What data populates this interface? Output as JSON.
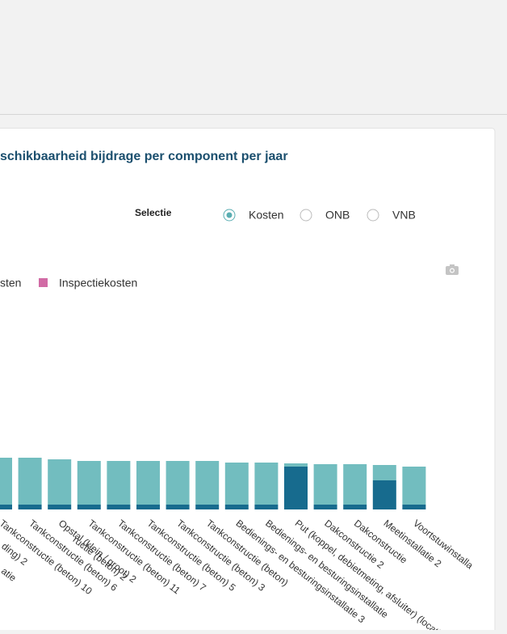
{
  "panel": {
    "title": "schikbaarheid bijdrage per component per jaar",
    "selection_label": "Selectie",
    "options": [
      "Kosten",
      "ONB",
      "VNB"
    ],
    "selected": 0
  },
  "legend": [
    {
      "name": "sten",
      "color": null
    },
    {
      "name": "Inspectiekosten",
      "color": "#d16ba5"
    }
  ],
  "cropped_labels": [
    "ructie (beton) 2",
    "ding) 2",
    "atie"
  ],
  "chart_data": {
    "type": "stacked-bar",
    "categories": [
      "Tankconstructie (beton) 10",
      "Tankconstructie (beton) 6",
      "Opstal (klein / groot) 2",
      "Tankconstructie (beton) 11",
      "Tankconstructie (beton) 7",
      "Tankconstructie (beton) 5",
      "Tankconstructie (beton) 3",
      "Tankconstructie (beton)",
      "Bedienings- en besturingsinstallatie 3",
      "Bedienings- en besturingsinstallatie",
      "Put (koppel, debietmeting, afsluiter) (locatie aan",
      "Dakconstructie 2",
      "Dakconstructie",
      "Meetinstallatie 2",
      "Voortstuwinstalla"
    ],
    "series": [
      {
        "color": "#176b8e",
        "values": [
          2.4,
          2.4,
          2.4,
          2.4,
          2.4,
          2.4,
          2.4,
          2.4,
          2.4,
          2.4,
          21.2,
          2.4,
          2.4,
          14.4,
          2.4
        ]
      },
      {
        "color": "#72bdbf",
        "values": [
          23.2,
          23.2,
          22.4,
          21.6,
          21.6,
          21.6,
          21.6,
          21.6,
          20.8,
          20.8,
          1.6,
          20,
          20,
          7.6,
          18.8
        ]
      }
    ],
    "ylim": [
      0,
      100
    ]
  }
}
